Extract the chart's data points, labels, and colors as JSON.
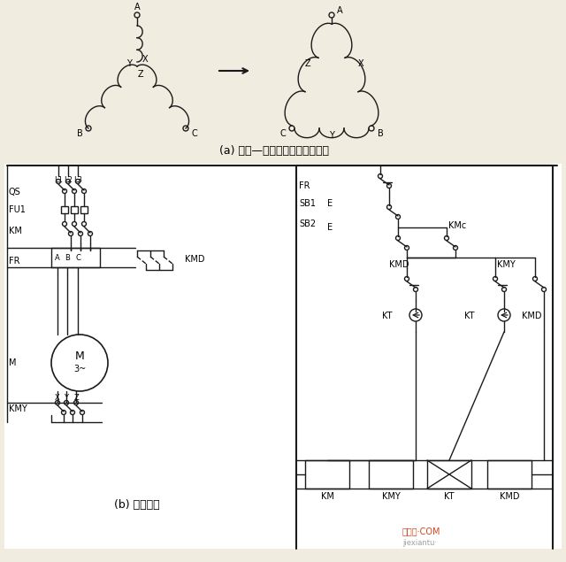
{
  "bg_color": "#f0ece0",
  "lc": "#1a1a1a",
  "label_a": "(a) 星形—三角形转换绕组连接图",
  "label_b": "(b) 控制线路",
  "wm1": "接线图·COM",
  "wm2": "jiexiantu·"
}
